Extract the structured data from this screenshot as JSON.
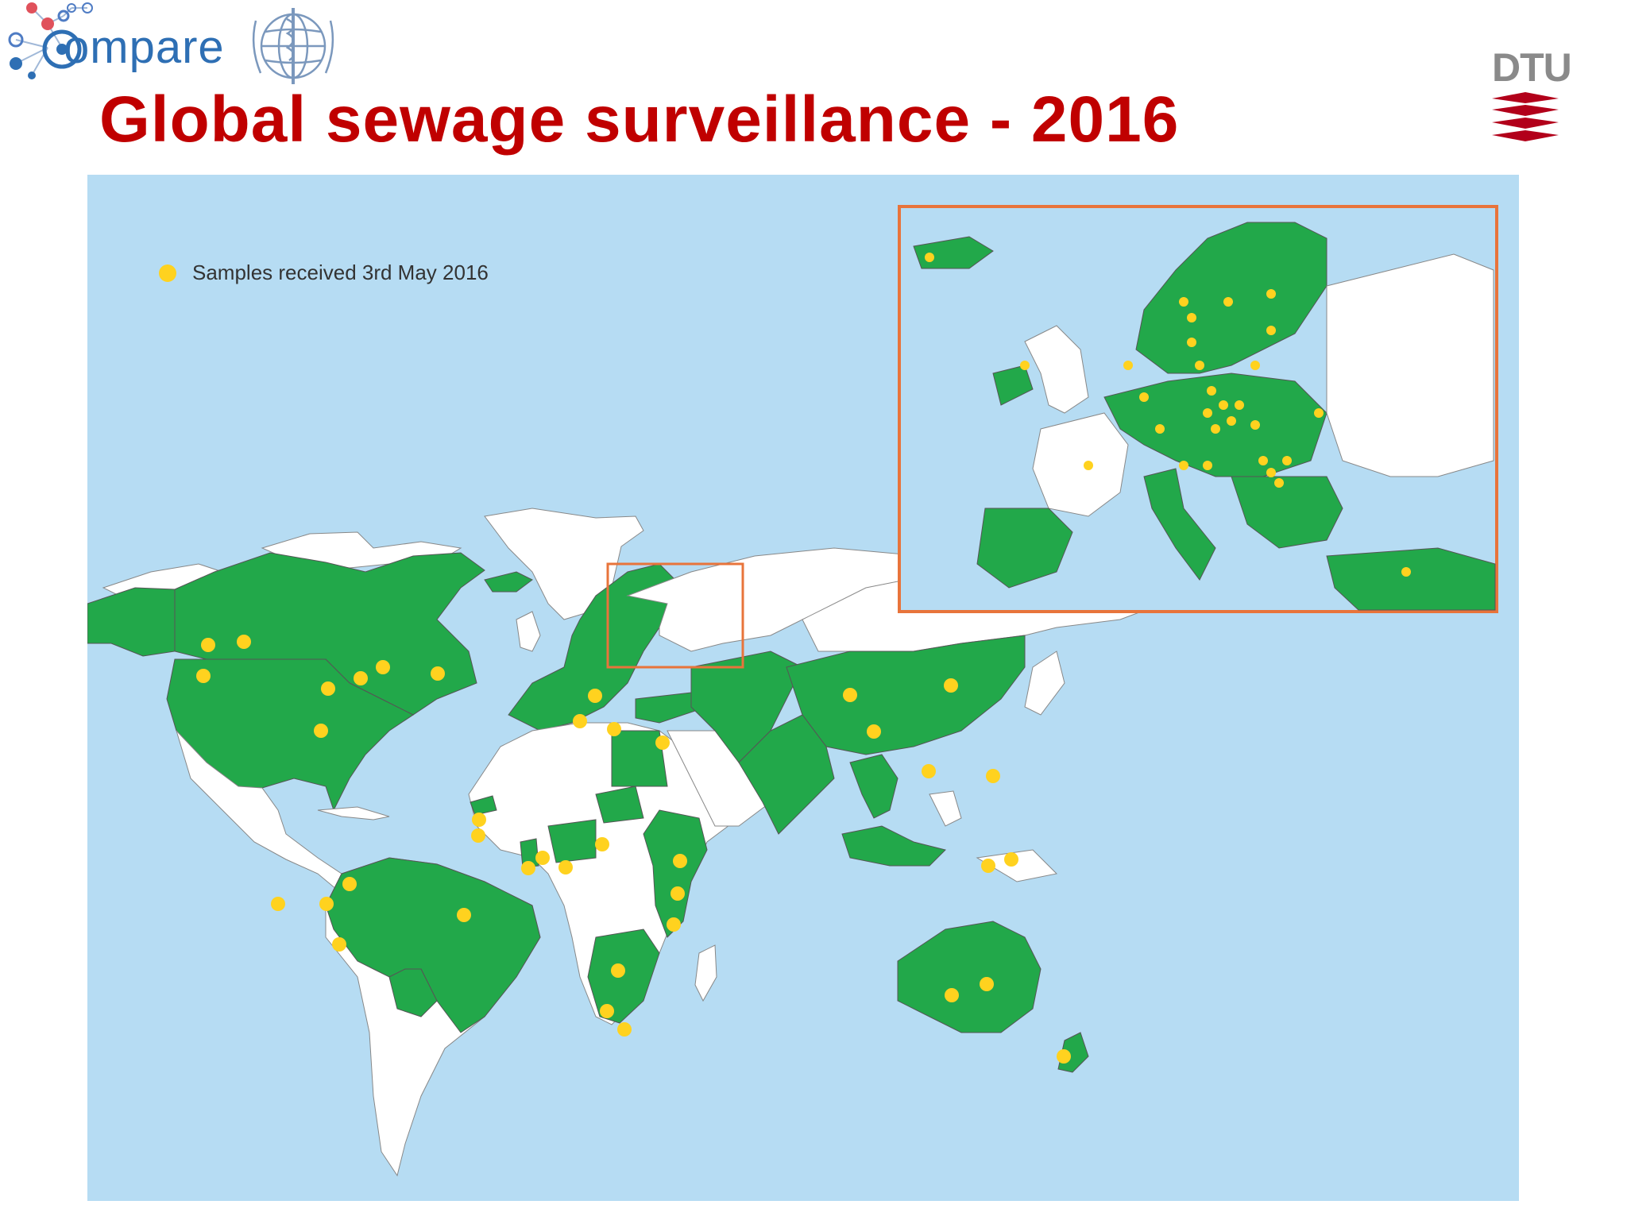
{
  "slide": {
    "title": "Global sewage surveillance - 2016"
  },
  "logos": {
    "compare_word": "ompare",
    "dtu_text": "DTU"
  },
  "legend": {
    "label": "Samples received 3rd May 2016",
    "marker_color": "#ffd21f"
  },
  "colors": {
    "ocean": "#b6dcf3",
    "participating_country": "#22a84a",
    "non_participating_country": "#ffffff",
    "sample_marker": "#ffd21f",
    "title": "#c00000",
    "inset_border": "#e8743b"
  },
  "map": {
    "inset_region": "Europe",
    "regions_shown_participating": [
      "Canada",
      "United States",
      "Colombia",
      "Venezuela",
      "Brazil",
      "Peru",
      "Ecuador",
      "Bolivia",
      "Western Europe",
      "Nordic countries",
      "Eastern Europe",
      "Turkey",
      "Iran",
      "Kazakhstan",
      "China",
      "India",
      "Pakistan",
      "Vietnam",
      "Cambodia",
      "Malaysia",
      "Indonesia",
      "Egypt",
      "Nigeria",
      "Ghana",
      "Senegal",
      "Ethiopia",
      "Kenya",
      "Tanzania",
      "Zambia",
      "Zimbabwe",
      "Botswana",
      "South Africa",
      "Australia",
      "New Zealand"
    ]
  },
  "icons": {
    "compare_logo": "compare-network-logo",
    "who_logo": "who-emblem",
    "dtu_logo": "dtu-logo"
  }
}
